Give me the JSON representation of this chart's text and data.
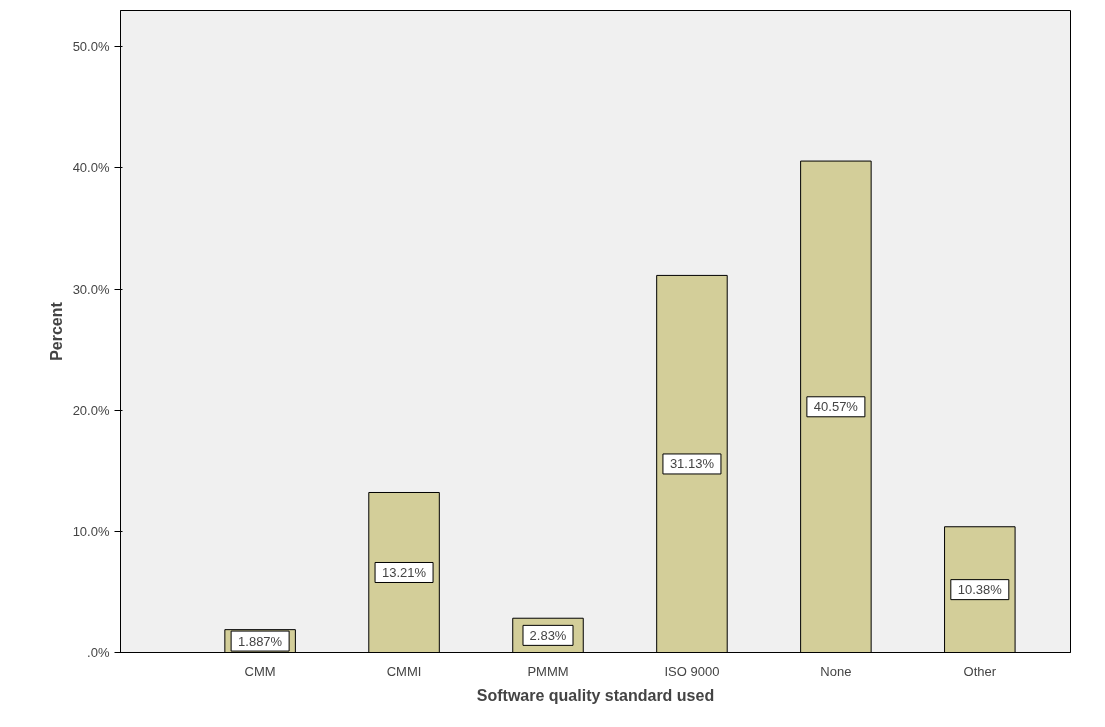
{
  "chart_data": {
    "type": "bar",
    "xlabel": "Software quality standard used",
    "ylabel": "Percent",
    "categories": [
      "CMM",
      "CMMI",
      "PMMM",
      "ISO 9000",
      "None",
      "Other"
    ],
    "values": [
      1.887,
      13.21,
      2.83,
      31.13,
      40.57,
      10.38
    ],
    "value_labels": [
      "1.887%",
      "13.21%",
      "2.83%",
      "31.13%",
      "40.57%",
      "10.38%"
    ],
    "color": "#d3ce99",
    "ylim": [
      0,
      53
    ],
    "yticks": [
      {
        "value": 0,
        "label": ".0%"
      },
      {
        "value": 10,
        "label": "10.0%"
      },
      {
        "value": 20,
        "label": "20.0%"
      },
      {
        "value": 30,
        "label": "30.0%"
      },
      {
        "value": 40,
        "label": "40.0%"
      },
      {
        "value": 50,
        "label": "50.0%"
      }
    ]
  }
}
